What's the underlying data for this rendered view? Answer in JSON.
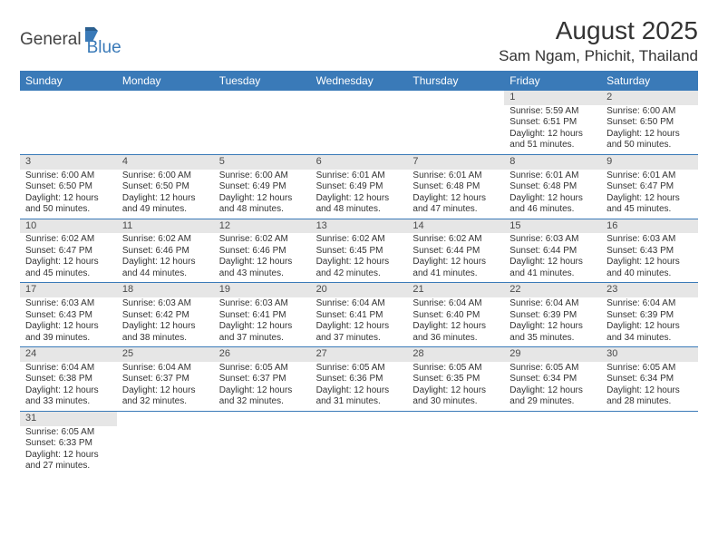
{
  "logo": {
    "text1": "General",
    "text2": "Blue"
  },
  "title": "August 2025",
  "location": "Sam Ngam, Phichit, Thailand",
  "colors": {
    "accent": "#3a7ab8",
    "daynum_bg": "#e6e6e6",
    "text": "#333333",
    "bg": "#ffffff"
  },
  "weekdays": [
    "Sunday",
    "Monday",
    "Tuesday",
    "Wednesday",
    "Thursday",
    "Friday",
    "Saturday"
  ],
  "weeks": [
    [
      null,
      null,
      null,
      null,
      null,
      {
        "n": "1",
        "sunrise": "5:59 AM",
        "sunset": "6:51 PM",
        "dh": "12",
        "dm": "51"
      },
      {
        "n": "2",
        "sunrise": "6:00 AM",
        "sunset": "6:50 PM",
        "dh": "12",
        "dm": "50"
      }
    ],
    [
      {
        "n": "3",
        "sunrise": "6:00 AM",
        "sunset": "6:50 PM",
        "dh": "12",
        "dm": "50"
      },
      {
        "n": "4",
        "sunrise": "6:00 AM",
        "sunset": "6:50 PM",
        "dh": "12",
        "dm": "49"
      },
      {
        "n": "5",
        "sunrise": "6:00 AM",
        "sunset": "6:49 PM",
        "dh": "12",
        "dm": "48"
      },
      {
        "n": "6",
        "sunrise": "6:01 AM",
        "sunset": "6:49 PM",
        "dh": "12",
        "dm": "48"
      },
      {
        "n": "7",
        "sunrise": "6:01 AM",
        "sunset": "6:48 PM",
        "dh": "12",
        "dm": "47"
      },
      {
        "n": "8",
        "sunrise": "6:01 AM",
        "sunset": "6:48 PM",
        "dh": "12",
        "dm": "46"
      },
      {
        "n": "9",
        "sunrise": "6:01 AM",
        "sunset": "6:47 PM",
        "dh": "12",
        "dm": "45"
      }
    ],
    [
      {
        "n": "10",
        "sunrise": "6:02 AM",
        "sunset": "6:47 PM",
        "dh": "12",
        "dm": "45"
      },
      {
        "n": "11",
        "sunrise": "6:02 AM",
        "sunset": "6:46 PM",
        "dh": "12",
        "dm": "44"
      },
      {
        "n": "12",
        "sunrise": "6:02 AM",
        "sunset": "6:46 PM",
        "dh": "12",
        "dm": "43"
      },
      {
        "n": "13",
        "sunrise": "6:02 AM",
        "sunset": "6:45 PM",
        "dh": "12",
        "dm": "42"
      },
      {
        "n": "14",
        "sunrise": "6:02 AM",
        "sunset": "6:44 PM",
        "dh": "12",
        "dm": "41"
      },
      {
        "n": "15",
        "sunrise": "6:03 AM",
        "sunset": "6:44 PM",
        "dh": "12",
        "dm": "41"
      },
      {
        "n": "16",
        "sunrise": "6:03 AM",
        "sunset": "6:43 PM",
        "dh": "12",
        "dm": "40"
      }
    ],
    [
      {
        "n": "17",
        "sunrise": "6:03 AM",
        "sunset": "6:43 PM",
        "dh": "12",
        "dm": "39"
      },
      {
        "n": "18",
        "sunrise": "6:03 AM",
        "sunset": "6:42 PM",
        "dh": "12",
        "dm": "38"
      },
      {
        "n": "19",
        "sunrise": "6:03 AM",
        "sunset": "6:41 PM",
        "dh": "12",
        "dm": "37"
      },
      {
        "n": "20",
        "sunrise": "6:04 AM",
        "sunset": "6:41 PM",
        "dh": "12",
        "dm": "37"
      },
      {
        "n": "21",
        "sunrise": "6:04 AM",
        "sunset": "6:40 PM",
        "dh": "12",
        "dm": "36"
      },
      {
        "n": "22",
        "sunrise": "6:04 AM",
        "sunset": "6:39 PM",
        "dh": "12",
        "dm": "35"
      },
      {
        "n": "23",
        "sunrise": "6:04 AM",
        "sunset": "6:39 PM",
        "dh": "12",
        "dm": "34"
      }
    ],
    [
      {
        "n": "24",
        "sunrise": "6:04 AM",
        "sunset": "6:38 PM",
        "dh": "12",
        "dm": "33"
      },
      {
        "n": "25",
        "sunrise": "6:04 AM",
        "sunset": "6:37 PM",
        "dh": "12",
        "dm": "32"
      },
      {
        "n": "26",
        "sunrise": "6:05 AM",
        "sunset": "6:37 PM",
        "dh": "12",
        "dm": "32"
      },
      {
        "n": "27",
        "sunrise": "6:05 AM",
        "sunset": "6:36 PM",
        "dh": "12",
        "dm": "31"
      },
      {
        "n": "28",
        "sunrise": "6:05 AM",
        "sunset": "6:35 PM",
        "dh": "12",
        "dm": "30"
      },
      {
        "n": "29",
        "sunrise": "6:05 AM",
        "sunset": "6:34 PM",
        "dh": "12",
        "dm": "29"
      },
      {
        "n": "30",
        "sunrise": "6:05 AM",
        "sunset": "6:34 PM",
        "dh": "12",
        "dm": "28"
      }
    ],
    [
      {
        "n": "31",
        "sunrise": "6:05 AM",
        "sunset": "6:33 PM",
        "dh": "12",
        "dm": "27"
      },
      null,
      null,
      null,
      null,
      null,
      null
    ]
  ]
}
